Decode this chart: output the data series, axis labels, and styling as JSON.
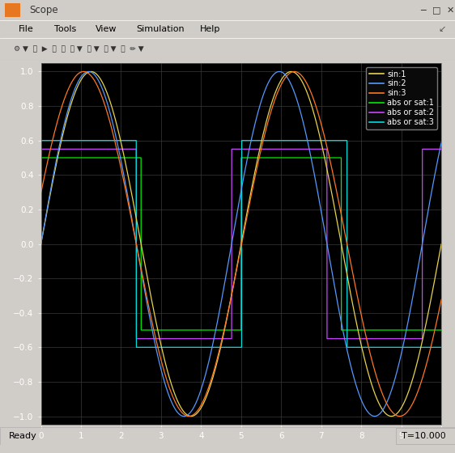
{
  "title": "Scope",
  "bg_color": "#000000",
  "grid_color": "#3a3a3a",
  "outer_bg": "#d0cdc8",
  "xlim": [
    0,
    10
  ],
  "ylim": [
    -1.05,
    1.05
  ],
  "xticks": [
    0,
    1,
    2,
    3,
    4,
    5,
    6,
    7,
    8,
    9,
    10
  ],
  "yticks": [
    -1.0,
    -0.8,
    -0.6,
    -0.4,
    -0.2,
    0.0,
    0.2,
    0.4,
    0.6,
    0.8,
    1.0
  ],
  "sin1_color": "#e8d44d",
  "sin2_color": "#5599ff",
  "sin3_color": "#ff7722",
  "sat1_color": "#00ee00",
  "sat2_color": "#cc44ff",
  "sat3_color": "#00dddd",
  "legend_labels": [
    "sin:1",
    "sin:2",
    "sin:3",
    "abs or sat:1",
    "abs or sat:2",
    "abs or sat:3"
  ],
  "omega1": 1.2566,
  "omega2": 1.3195,
  "omega3": 1.1938,
  "phase1": 0.0,
  "phase2": 0.0,
  "phase3": 0.3,
  "sat_level1": 0.5,
  "sat_level2": 0.55,
  "sat_level3": 0.6,
  "title_bar_color": "#dce6f0",
  "title_text_color": "#444444",
  "status_text": "Ready",
  "time_text": "T=10.000"
}
